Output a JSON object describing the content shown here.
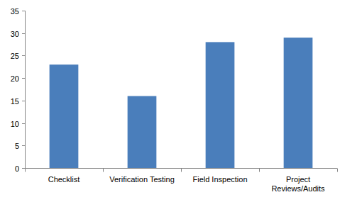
{
  "chart_data": {
    "type": "bar",
    "categories": [
      "Checklist",
      "Verification Testing",
      "Field Inspection",
      "Project Reviews/Audits"
    ],
    "values": [
      23,
      16,
      28,
      29
    ],
    "color": "#4a7ebb",
    "ylim": [
      0,
      35
    ],
    "yticks": [
      0,
      5,
      10,
      15,
      20,
      25,
      30,
      35
    ],
    "grid": false
  }
}
